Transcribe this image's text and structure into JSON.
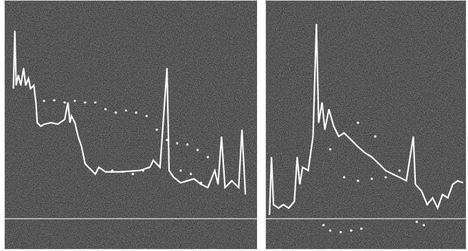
{
  "chart_data": [
    {
      "type": "line",
      "xlim": [
        -4,
        105
      ],
      "ylim": [
        -14,
        100
      ],
      "yticks": [
        0
      ],
      "grid": true,
      "tick_labels": false,
      "series": [
        {
          "type": "line",
          "color": "#ffffff",
          "x": [
            0,
            0.6,
            1.2,
            2.1,
            3.2,
            4.4,
            5.3,
            6.5,
            7.4,
            8.8,
            9.7,
            10.3,
            11.8,
            13.2,
            16.2,
            19.1,
            22.1,
            23.5,
            24.4,
            25,
            26.5,
            27.9,
            29.4,
            30.9,
            32.4,
            33.8,
            35.3,
            36.8,
            39.7,
            45.6,
            54.4,
            58.8,
            60.3,
            63.2,
            66.2,
            67.1,
            69.1,
            72.1,
            75,
            77.9,
            80.9,
            83.8,
            86.8,
            88.2,
            89.7,
            91.2,
            94.1,
            97.1,
            98.5,
            100
          ],
          "values": [
            59.4,
            85.9,
            60.9,
            65.6,
            60.9,
            68.8,
            60.9,
            64.1,
            59.4,
            60.9,
            53.1,
            43.8,
            42.2,
            43.1,
            43.8,
            43.1,
            45.3,
            53.1,
            43.8,
            46.9,
            43.8,
            37.5,
            32.8,
            25,
            23.4,
            21.9,
            20.3,
            23.4,
            21.3,
            21.3,
            21.9,
            23.4,
            26.6,
            23.4,
            68.8,
            21.9,
            18.8,
            16.3,
            17.2,
            18.1,
            15.6,
            14.1,
            21.9,
            15.6,
            37.5,
            14.1,
            17.2,
            14.1,
            40.6,
            10.9
          ]
        },
        {
          "type": "scatter",
          "color": "#ffffff",
          "marker": "circle",
          "x": [
            13.2,
            17.6,
            22.1,
            26.5,
            30.9,
            35.3,
            39.7,
            44.1,
            48.5,
            52.9,
            57.4,
            61.8,
            66.2,
            70.6,
            75,
            79.4,
            83.8,
            42.6,
            47.1,
            51.5,
            55.9,
            72.1,
            76.5,
            80.9
          ],
          "values": [
            53.8,
            54.1,
            53.1,
            53.8,
            53.1,
            53.1,
            50,
            48.4,
            49.4,
            48.4,
            46.9,
            40.6,
            35.9,
            34.4,
            33.8,
            31.3,
            28.1,
            21.9,
            21.3,
            20.3,
            21.9,
            21.9,
            20.3,
            16.3
          ]
        }
      ]
    },
    {
      "type": "line",
      "xlim": [
        0,
        100
      ],
      "ylim": [
        -14,
        100
      ],
      "yticks": [
        0
      ],
      "grid": true,
      "tick_labels": false,
      "series": [
        {
          "type": "line",
          "color": "#ffffff",
          "x": [
            2.1,
            3.1,
            4.1,
            6.6,
            9,
            11.7,
            14.5,
            15.9,
            17.2,
            18.6,
            21.4,
            23.8,
            25.5,
            26.6,
            28.3,
            29.7,
            31.7,
            34.1,
            36.6,
            39.3,
            42.8,
            46.2,
            49.7,
            53.1,
            56.6,
            60,
            63.4,
            66.9,
            70.3,
            73.8,
            74.8,
            77.9,
            80.7,
            83.4,
            85.9,
            88.3,
            91,
            93.4,
            95.9,
            98.6
          ],
          "values": [
            1.6,
            28.1,
            6.3,
            4.7,
            6.3,
            4.7,
            7.8,
            28.1,
            15.6,
            23.4,
            21.9,
            37.5,
            89.1,
            43.8,
            53.1,
            40.6,
            50,
            42.2,
            37.5,
            39.1,
            35.9,
            32.8,
            30,
            28.1,
            25,
            21.9,
            20.3,
            18.8,
            17.2,
            37.5,
            15.6,
            12.5,
            6.3,
            9.4,
            4.7,
            10.9,
            9.4,
            15.6,
            17.2,
            16.3
          ]
        },
        {
          "type": "scatter",
          "color": "#ffffff",
          "marker": "circle",
          "x": [
            29,
            32.4,
            37.6,
            42.8,
            47.9,
            75.5,
            79,
            32.4,
            39.3,
            46.2,
            53.1,
            60,
            66.9,
            46.2,
            54.8
          ],
          "values": [
            -3.1,
            -5.6,
            -6.3,
            -5.6,
            -4.7,
            -1.6,
            -3.1,
            31.6,
            18.8,
            17.2,
            18.1,
            18.8,
            21.9,
            43.8,
            37.5
          ]
        }
      ]
    }
  ]
}
